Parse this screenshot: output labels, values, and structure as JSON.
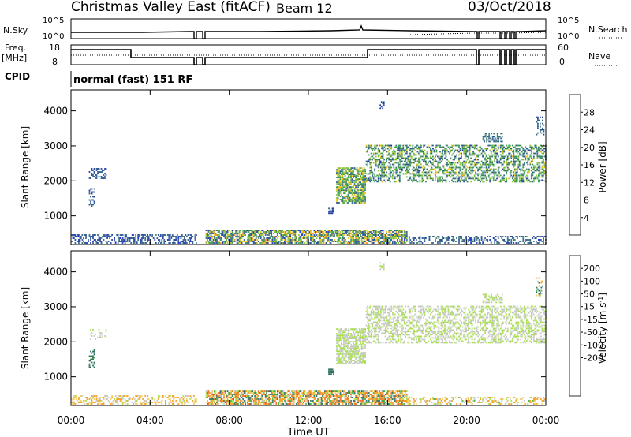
{
  "header": {
    "station": "Christmas Valley East (fitACF)",
    "beam": "Beam 12",
    "date": "03/Oct/2018"
  },
  "strip_labels": {
    "nsky": "N.Sky",
    "nsky_top": "10^5",
    "nsky_bottom": "10^0",
    "nsearch": "N.Search",
    "nsearch_top": "10^5",
    "nsearch_bottom": "10^0",
    "freq_l1": "Freq.",
    "freq_l2": "[MHz]",
    "freq_top": "18",
    "freq_bottom": "8",
    "nave": "Nave",
    "nave_top": "60",
    "nave_bottom": "0",
    "cpid": "CPID",
    "cpid_value": "normal (fast) 151 RF"
  },
  "colors": {
    "power": [
      "#0b24f0",
      "#1f3f9e",
      "#2f5f8c",
      "#3f8070",
      "#3aa04a",
      "#8cc23a",
      "#f0c010",
      "#f09020",
      "#f05a10",
      "#e02010"
    ],
    "velocity": [
      "#1b2fd0",
      "#2f4fa0",
      "#2f7060",
      "#3fae3f",
      "#a8e050",
      "#c8c8c8",
      "#f2d060",
      "#f4a020",
      "#f07020",
      "#e04010",
      "#e01010"
    ]
  },
  "chart_data": [
    {
      "type": "heatmap",
      "name": "Power",
      "ylabel": "Slant Range [km]",
      "yticks": [
        1000,
        2000,
        3000,
        4000
      ],
      "ylim": [
        180,
        4600
      ],
      "xlim": [
        0,
        24
      ],
      "xticks": [
        "00:00",
        "04:00",
        "08:00",
        "12:00",
        "16:00",
        "20:00",
        "00:00"
      ],
      "colorbar_label": "Power [dB]",
      "colorbar_ticks": [
        "4",
        "8",
        "12",
        "16",
        "20",
        "24",
        "28"
      ],
      "colorbar_range": [
        0,
        32
      ],
      "regions": [
        {
          "t0": 0.0,
          "t1": 6.3,
          "r0": 200,
          "r1": 450,
          "v": [
            3,
            10
          ],
          "density": 0.45
        },
        {
          "t0": 6.8,
          "t1": 17.0,
          "r0": 200,
          "r1": 600,
          "v": [
            3,
            24
          ],
          "density": 0.7
        },
        {
          "t0": 17.0,
          "t1": 24.0,
          "r0": 200,
          "r1": 420,
          "v": [
            3,
            12
          ],
          "density": 0.35
        },
        {
          "t0": 0.9,
          "t1": 1.8,
          "r0": 2050,
          "r1": 2350,
          "v": [
            4,
            9
          ],
          "density": 0.35
        },
        {
          "t0": 0.9,
          "t1": 1.2,
          "r0": 1250,
          "r1": 1750,
          "v": [
            4,
            9
          ],
          "density": 0.45
        },
        {
          "t0": 13.0,
          "t1": 13.3,
          "r0": 1050,
          "r1": 1200,
          "v": [
            4,
            8
          ],
          "density": 0.7
        },
        {
          "t0": 13.4,
          "t1": 14.9,
          "r0": 1350,
          "r1": 2350,
          "v": [
            8,
            22
          ],
          "density": 0.7
        },
        {
          "t0": 14.9,
          "t1": 24.0,
          "r0": 1950,
          "r1": 3000,
          "v": [
            6,
            20
          ],
          "density": 0.45
        },
        {
          "t0": 20.8,
          "t1": 21.8,
          "r0": 3100,
          "r1": 3350,
          "v": [
            6,
            12
          ],
          "density": 0.5
        },
        {
          "t0": 23.5,
          "t1": 23.9,
          "r0": 3300,
          "r1": 3800,
          "v": [
            4,
            10
          ],
          "density": 0.3
        },
        {
          "t0": 15.6,
          "t1": 15.8,
          "r0": 4050,
          "r1": 4250,
          "v": [
            4,
            8
          ],
          "density": 0.5
        }
      ]
    },
    {
      "type": "heatmap",
      "name": "Velocity",
      "ylabel": "Slant Range [km]",
      "yticks": [
        1000,
        2000,
        3000,
        4000
      ],
      "ylim": [
        180,
        4600
      ],
      "xlim": [
        0,
        24
      ],
      "xticks": [
        "00:00",
        "04:00",
        "08:00",
        "12:00",
        "16:00",
        "20:00",
        "00:00"
      ],
      "xlabel": "Time UT",
      "colorbar_label": "Velocity [m s^-1]",
      "colorbar_ticks": [
        "200",
        "100",
        "50",
        "15",
        "-15",
        "-50",
        "-100",
        "-200"
      ],
      "regions": [
        {
          "t0": 0.0,
          "t1": 6.3,
          "r0": 200,
          "r1": 450,
          "v": [
            -60,
            10
          ],
          "density": 0.4
        },
        {
          "t0": 6.8,
          "t1": 17.0,
          "r0": 200,
          "r1": 600,
          "v": [
            -110,
            60
          ],
          "density": 0.7
        },
        {
          "t0": 17.0,
          "t1": 24.0,
          "r0": 200,
          "r1": 420,
          "v": [
            -60,
            20
          ],
          "density": 0.35
        },
        {
          "t0": 0.9,
          "t1": 1.8,
          "r0": 2050,
          "r1": 2350,
          "v": [
            -10,
            10
          ],
          "density": 0.3
        },
        {
          "t0": 0.9,
          "t1": 1.2,
          "r0": 1250,
          "r1": 1750,
          "v": [
            30,
            60
          ],
          "density": 0.45
        },
        {
          "t0": 13.0,
          "t1": 13.3,
          "r0": 1050,
          "r1": 1200,
          "v": [
            30,
            60
          ],
          "density": 0.7
        },
        {
          "t0": 13.4,
          "t1": 14.9,
          "r0": 1350,
          "r1": 2350,
          "v": [
            -12,
            12
          ],
          "density": 0.7
        },
        {
          "t0": 14.9,
          "t1": 24.0,
          "r0": 1950,
          "r1": 3000,
          "v": [
            -14,
            14
          ],
          "density": 0.45
        },
        {
          "t0": 20.8,
          "t1": 21.8,
          "r0": 3100,
          "r1": 3350,
          "v": [
            -10,
            10
          ],
          "density": 0.5
        },
        {
          "t0": 23.5,
          "t1": 23.9,
          "r0": 3300,
          "r1": 3800,
          "v": [
            -80,
            120
          ],
          "density": 0.3
        },
        {
          "t0": 15.6,
          "t1": 15.8,
          "r0": 4050,
          "r1": 4250,
          "v": [
            -10,
            10
          ],
          "density": 0.5
        }
      ]
    }
  ]
}
